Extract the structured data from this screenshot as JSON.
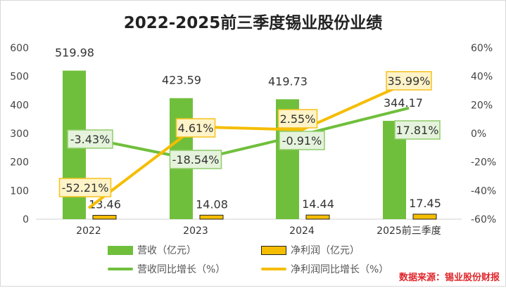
{
  "chart_data": {
    "type": "bar+line",
    "title": "2022-2025前三季度锡业股份业绩",
    "categories": [
      "2022",
      "2023",
      "2024",
      "2025前三季度"
    ],
    "series": [
      {
        "name": "营收（亿元）",
        "type": "bar",
        "axis": "left",
        "color": "#70bf3c",
        "values": [
          519.98,
          423.59,
          419.73,
          344.17
        ],
        "labels": [
          "519.98",
          "423.59",
          "419.73",
          "344.17"
        ]
      },
      {
        "name": "净利润（亿元）",
        "type": "bar",
        "axis": "left",
        "color": "#f5bd00",
        "values": [
          13.46,
          14.08,
          14.44,
          17.45
        ],
        "labels": [
          "13.46",
          "14.08",
          "14.44",
          "17.45"
        ]
      },
      {
        "name": "营收同比增长（%）",
        "type": "line",
        "axis": "right",
        "color": "#70bf3c",
        "values": [
          -3.43,
          -18.54,
          -0.91,
          17.81
        ],
        "labels": [
          "-3.43%",
          "-18.54%",
          "-0.91%",
          "17.81%"
        ]
      },
      {
        "name": "净利润同比增长（%）",
        "type": "line",
        "axis": "right",
        "color": "#f5bd00",
        "values": [
          -52.21,
          4.61,
          2.55,
          35.99
        ],
        "labels": [
          "-52.21%",
          "4.61%",
          "2.55%",
          "35.99%"
        ]
      }
    ],
    "left_axis": {
      "range": [
        0,
        600
      ],
      "ticks": [
        "0",
        "100",
        "200",
        "300",
        "400",
        "500",
        "600"
      ]
    },
    "right_axis": {
      "range": [
        -60,
        60
      ],
      "ticks": [
        "-60%",
        "-40%",
        "-20%",
        "0%",
        "20%",
        "40%",
        "60%"
      ]
    },
    "legend": "bottom",
    "grid": false
  },
  "source": "数据来源：锡业股份财报"
}
